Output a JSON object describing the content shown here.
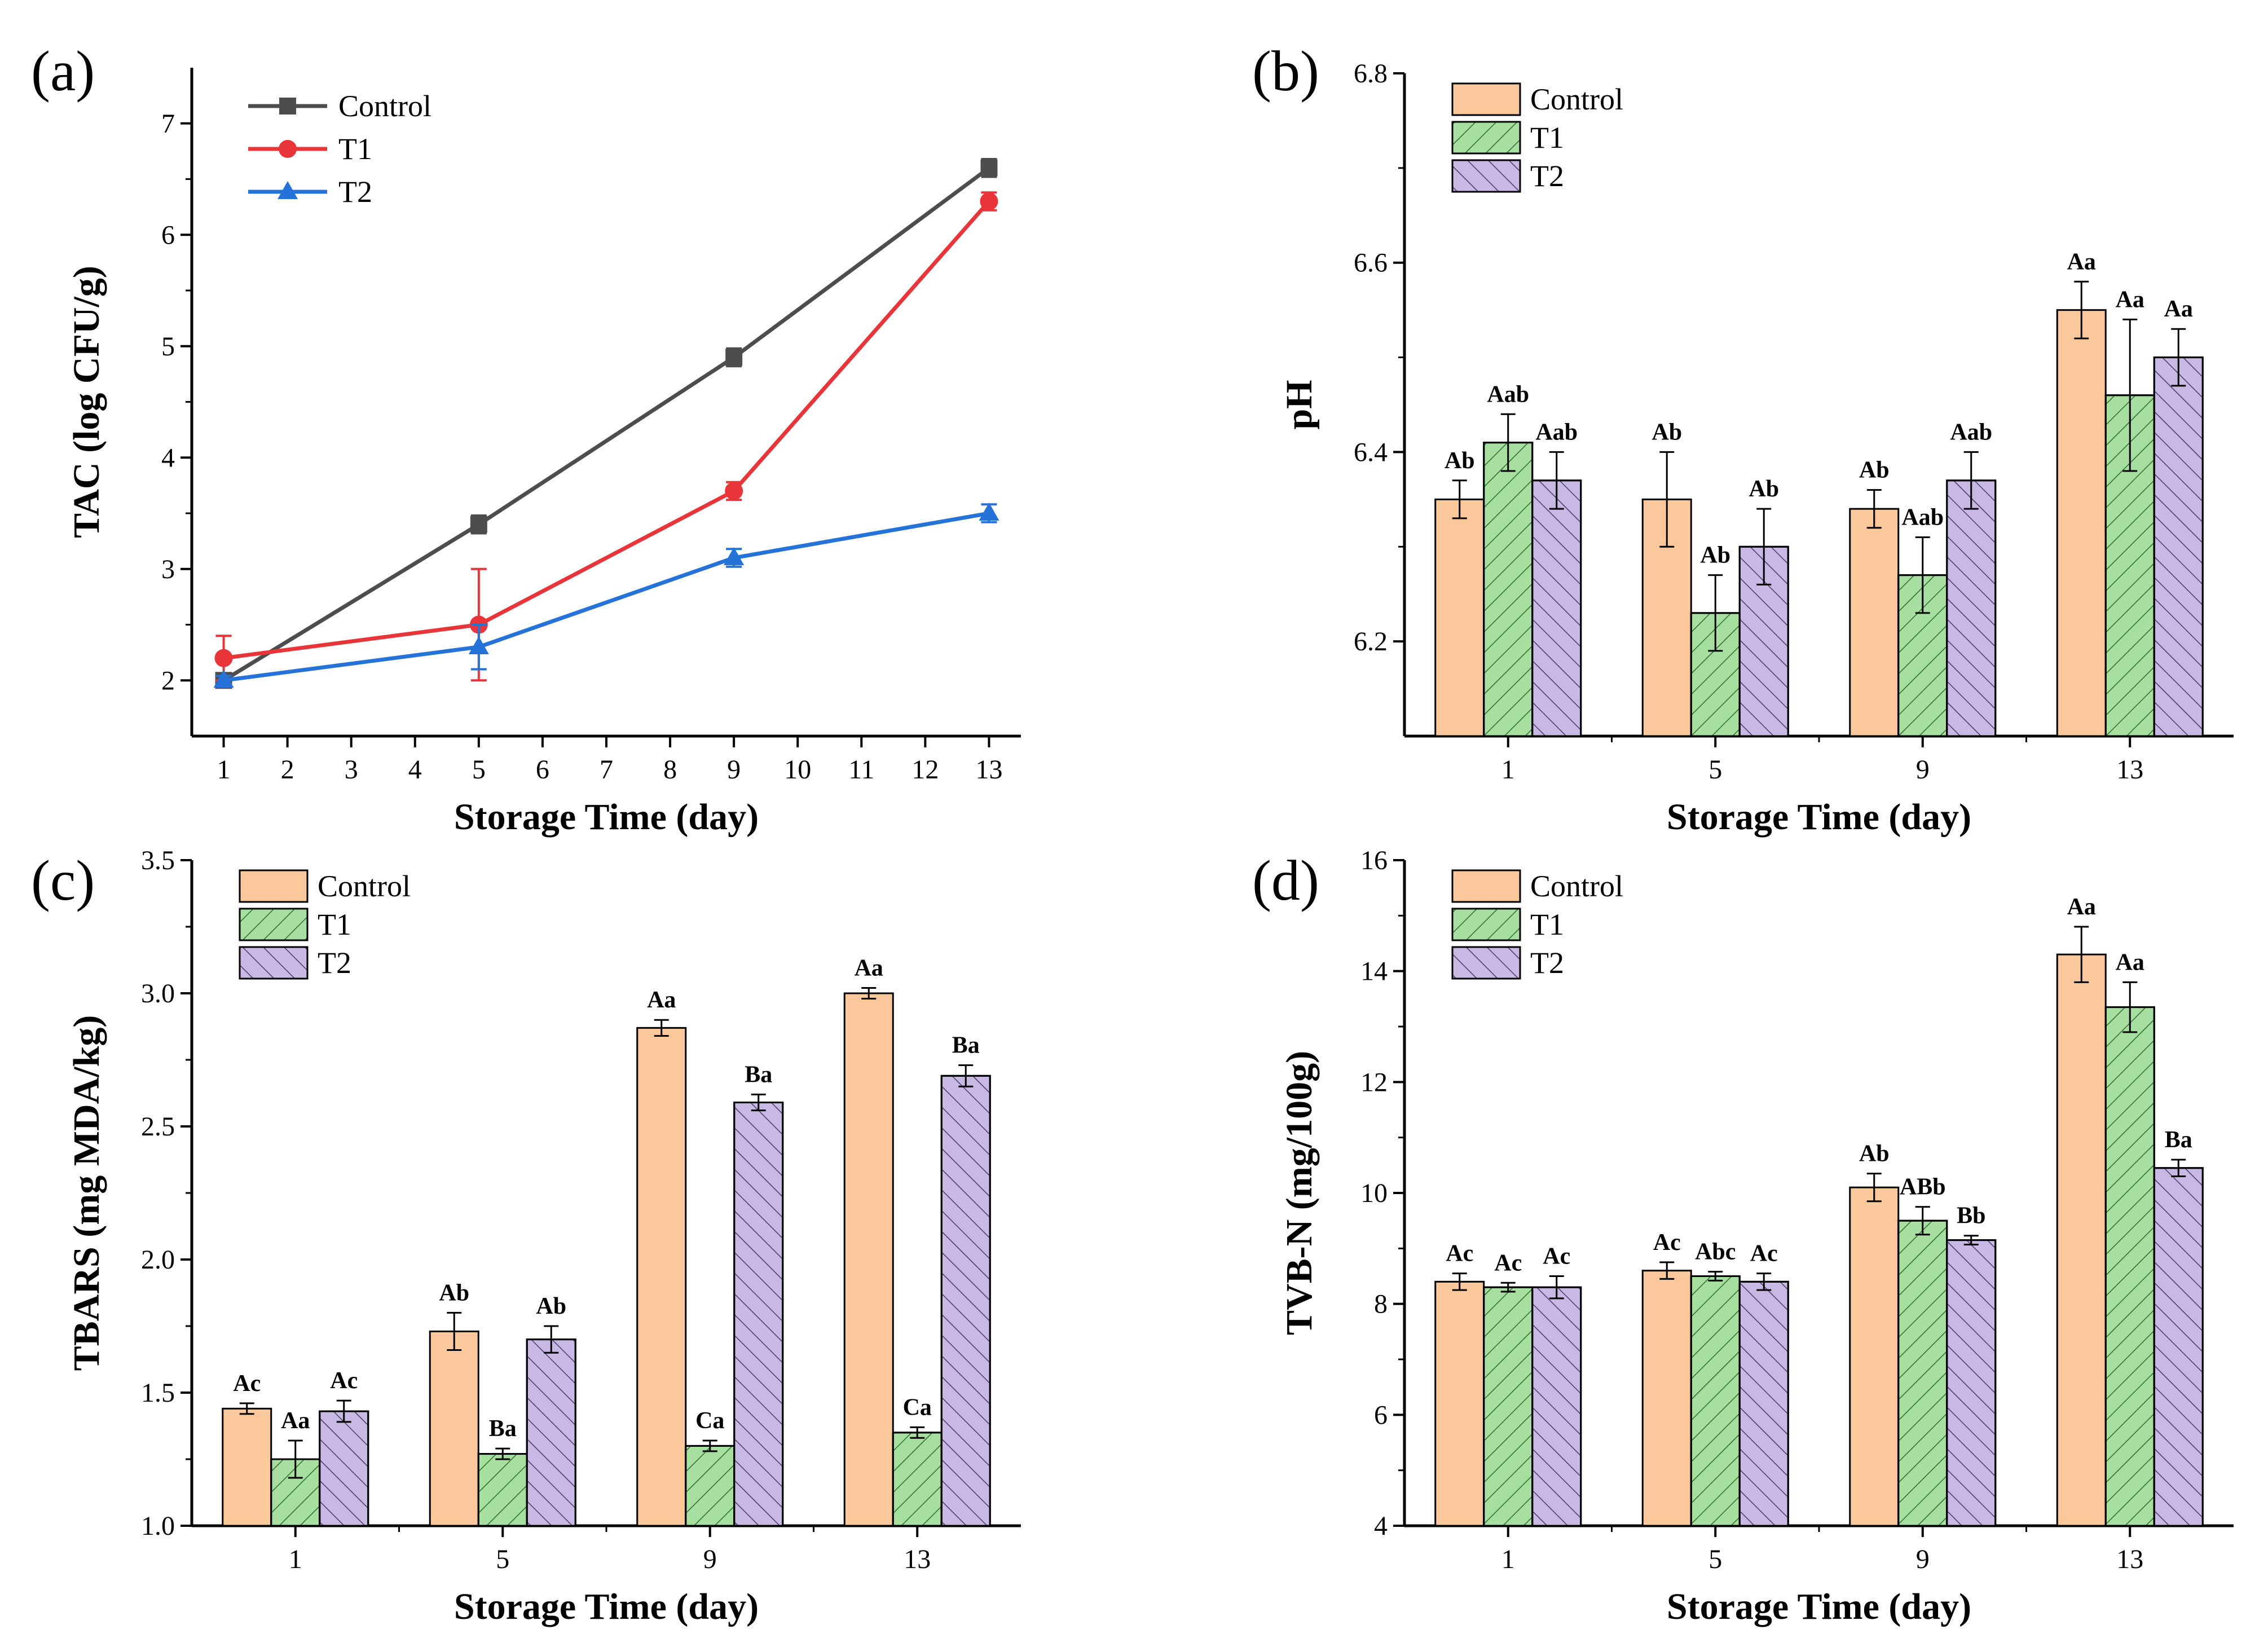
{
  "colors": {
    "control_line": "#4d4d4d",
    "t1_line": "#e8353a",
    "t2_line": "#2573d9",
    "control_bar": "#fac89b",
    "t1_bar": "#a7dfa1",
    "t2_bar": "#c8b8e4",
    "axis": "#000000"
  },
  "chart_data": [
    {
      "id": "a",
      "panel_label": "(a)",
      "type": "line",
      "xlabel": "Storage Time (day)",
      "ylabel": "TAC (log CFU/g)",
      "xlim": [
        0.5,
        13.5
      ],
      "ylim": [
        1.5,
        7.5
      ],
      "xticks": [
        1,
        2,
        3,
        4,
        5,
        6,
        7,
        8,
        9,
        10,
        11,
        12,
        13
      ],
      "yticks": [
        2,
        3,
        4,
        5,
        6,
        7
      ],
      "x": [
        1,
        5,
        9,
        13
      ],
      "legend": {
        "position": "top-left"
      },
      "series": [
        {
          "name": "Control",
          "marker": "square",
          "color_key": "control_line",
          "values": [
            2.0,
            3.4,
            4.9,
            6.6
          ],
          "errors": [
            0.04,
            0.08,
            0.08,
            0.08
          ]
        },
        {
          "name": "T1",
          "marker": "circle",
          "color_key": "t1_line",
          "values": [
            2.2,
            2.5,
            3.7,
            6.3
          ],
          "errors": [
            0.2,
            0.5,
            0.08,
            0.08
          ]
        },
        {
          "name": "T2",
          "marker": "triangle",
          "color_key": "t2_line",
          "values": [
            2.0,
            2.3,
            3.1,
            3.5
          ],
          "errors": [
            0.04,
            0.2,
            0.08,
            0.08
          ]
        }
      ]
    },
    {
      "id": "b",
      "panel_label": "(b)",
      "type": "bar",
      "xlabel": "Storage Time (day)",
      "ylabel": "pH",
      "ylim": [
        6.1,
        6.8
      ],
      "yticks": [
        6.2,
        6.4,
        6.6,
        6.8
      ],
      "categories": [
        "1",
        "5",
        "9",
        "13"
      ],
      "legend": {
        "position": "top-left"
      },
      "series": [
        {
          "name": "Control",
          "pattern": "none",
          "color_key": "control_bar",
          "values": [
            6.35,
            6.35,
            6.34,
            6.55
          ],
          "errors": [
            0.02,
            0.05,
            0.02,
            0.03
          ],
          "labels": [
            "Ab",
            "Ab",
            "Ab",
            "Aa"
          ]
        },
        {
          "name": "T1",
          "pattern": "hatch-up",
          "color_key": "t1_bar",
          "values": [
            6.41,
            6.23,
            6.27,
            6.46
          ],
          "errors": [
            0.03,
            0.04,
            0.04,
            0.08
          ],
          "labels": [
            "Aab",
            "Ab",
            "Aab",
            "Aa"
          ]
        },
        {
          "name": "T2",
          "pattern": "hatch-down",
          "color_key": "t2_bar",
          "values": [
            6.37,
            6.3,
            6.37,
            6.5
          ],
          "errors": [
            0.03,
            0.04,
            0.03,
            0.03
          ],
          "labels": [
            "Aab",
            "Ab",
            "Aab",
            "Aa"
          ]
        }
      ]
    },
    {
      "id": "c",
      "panel_label": "(c)",
      "type": "bar",
      "xlabel": "Storage Time (day)",
      "ylabel": "TBARS (mg MDA/kg)",
      "ylim": [
        1.0,
        3.5
      ],
      "yticks": [
        "1.0",
        "1.5",
        "2.0",
        "2.5",
        "3.0",
        "3.5"
      ],
      "categories": [
        "1",
        "5",
        "9",
        "13"
      ],
      "legend": {
        "position": "top-left"
      },
      "series": [
        {
          "name": "Control",
          "pattern": "none",
          "color_key": "control_bar",
          "values": [
            1.44,
            1.73,
            2.87,
            3.0
          ],
          "errors": [
            0.02,
            0.07,
            0.03,
            0.02
          ],
          "labels": [
            "Ac",
            "Ab",
            "Aa",
            "Aa"
          ]
        },
        {
          "name": "T1",
          "pattern": "hatch-up",
          "color_key": "t1_bar",
          "values": [
            1.25,
            1.27,
            1.3,
            1.35
          ],
          "errors": [
            0.07,
            0.02,
            0.02,
            0.02
          ],
          "labels": [
            "Aa",
            "Ba",
            "Ca",
            "Ca"
          ]
        },
        {
          "name": "T2",
          "pattern": "hatch-down",
          "color_key": "t2_bar",
          "values": [
            1.43,
            1.7,
            2.59,
            2.69
          ],
          "errors": [
            0.04,
            0.05,
            0.03,
            0.04
          ],
          "labels": [
            "Ac",
            "Ab",
            "Ba",
            "Ba"
          ]
        }
      ]
    },
    {
      "id": "d",
      "panel_label": "(d)",
      "type": "bar",
      "xlabel": "Storage Time (day)",
      "ylabel": "TVB-N (mg/100g)",
      "ylim": [
        4,
        16
      ],
      "yticks": [
        4,
        6,
        8,
        10,
        12,
        14,
        16
      ],
      "categories": [
        "1",
        "5",
        "9",
        "13"
      ],
      "legend": {
        "position": "top-left"
      },
      "series": [
        {
          "name": "Control",
          "pattern": "none",
          "color_key": "control_bar",
          "values": [
            8.4,
            8.6,
            10.1,
            14.3
          ],
          "errors": [
            0.15,
            0.15,
            0.25,
            0.5
          ],
          "labels": [
            "Ac",
            "Ac",
            "Ab",
            "Aa"
          ]
        },
        {
          "name": "T1",
          "pattern": "hatch-up",
          "color_key": "t1_bar",
          "values": [
            8.3,
            8.5,
            9.5,
            13.35
          ],
          "errors": [
            0.08,
            0.08,
            0.25,
            0.45
          ],
          "labels": [
            "Ac",
            "Abc",
            "ABb",
            "Aa"
          ]
        },
        {
          "name": "T2",
          "pattern": "hatch-down",
          "color_key": "t2_bar",
          "values": [
            8.3,
            8.4,
            9.15,
            10.45
          ],
          "errors": [
            0.2,
            0.15,
            0.08,
            0.15
          ],
          "labels": [
            "Ac",
            "Ac",
            "Bb",
            "Ba"
          ]
        }
      ]
    }
  ]
}
